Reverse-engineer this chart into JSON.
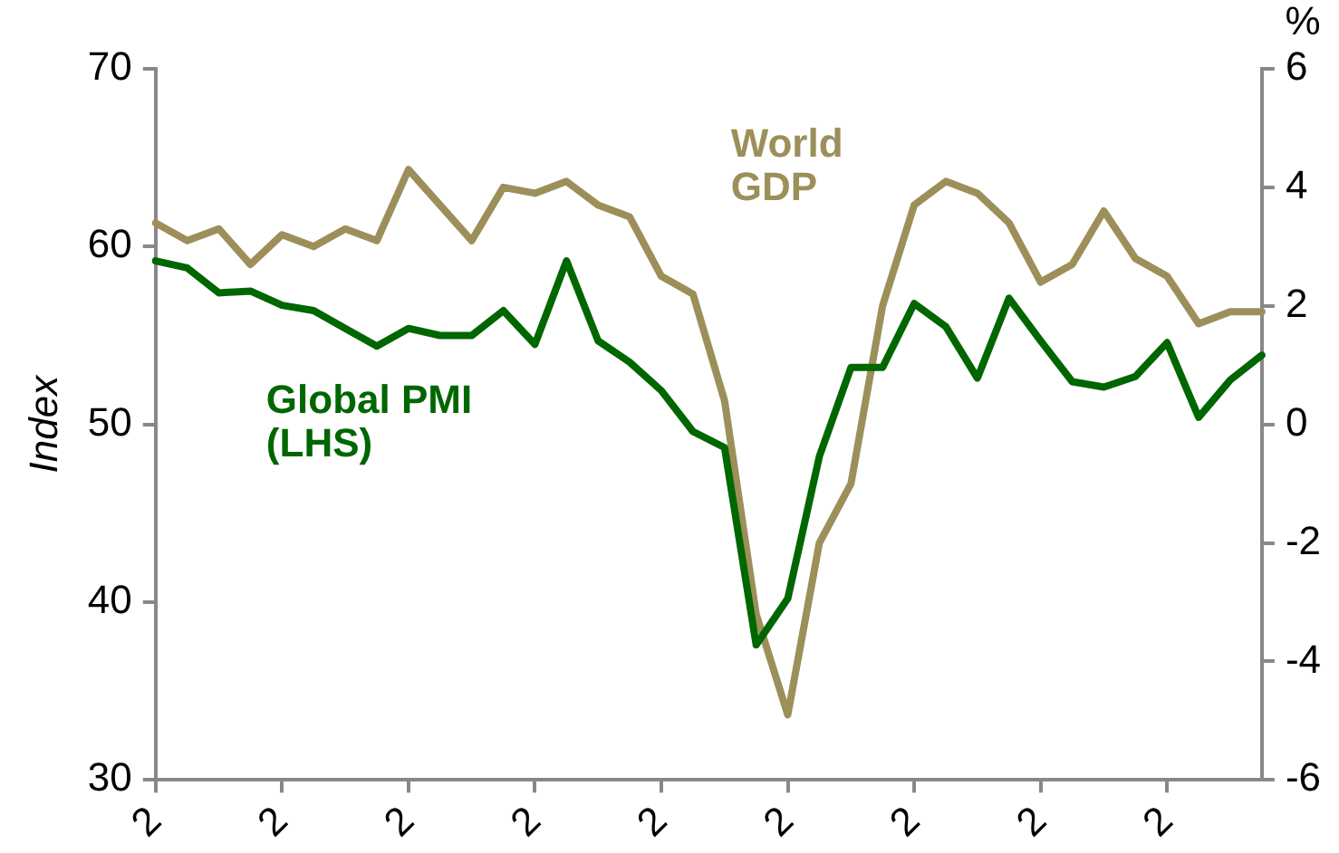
{
  "chart_data": {
    "type": "line",
    "ylabel": "Index",
    "y2label": "%",
    "categories": [
      "2",
      null,
      null,
      null,
      "2",
      null,
      null,
      null,
      "2",
      null,
      null,
      null,
      "2",
      null,
      null,
      null,
      "2",
      null,
      null,
      null,
      "2",
      null,
      null,
      null,
      "2",
      null,
      null,
      null,
      "2",
      null,
      null,
      null,
      "2",
      null,
      null,
      null
    ],
    "series": [
      {
        "name": "Global PMI (LHS)",
        "color": "#006600",
        "values": [
          59.2,
          58.8,
          57.4,
          57.5,
          56.7,
          56.4,
          55.4,
          54.4,
          55.4,
          55.0,
          55.0,
          56.4,
          54.5,
          59.2,
          54.7,
          53.5,
          51.9,
          49.6,
          48.7,
          37.6,
          40.2,
          48.2,
          53.2,
          53.2,
          56.8,
          55.5,
          52.6,
          57.1,
          54.7,
          52.4,
          52.1,
          52.7,
          54.6,
          50.4,
          52.5,
          53.9
        ]
      },
      {
        "name": "World GDP",
        "color": "#9c8f5a",
        "axis": "y2",
        "values": [
          3.4,
          3.1,
          3.3,
          2.7,
          3.2,
          3.0,
          3.3,
          3.1,
          4.3,
          3.7,
          3.1,
          4.0,
          3.9,
          4.1,
          3.7,
          3.5,
          2.5,
          2.2,
          0.4,
          -3.2,
          -4.9,
          -2.0,
          -1.0,
          2.0,
          3.7,
          4.1,
          3.9,
          3.4,
          2.4,
          2.7,
          3.6,
          2.8,
          2.5,
          1.7,
          1.9,
          1.9
        ]
      }
    ],
    "ylim": [
      30,
      70
    ],
    "yticks": [
      30,
      40,
      50,
      60,
      70
    ],
    "y2lim": [
      -6,
      6
    ],
    "y2ticks": [
      -6,
      -4,
      -2,
      0,
      2,
      4,
      6
    ],
    "grid": false,
    "legend": false,
    "marker": "none",
    "line_style": "solid"
  }
}
